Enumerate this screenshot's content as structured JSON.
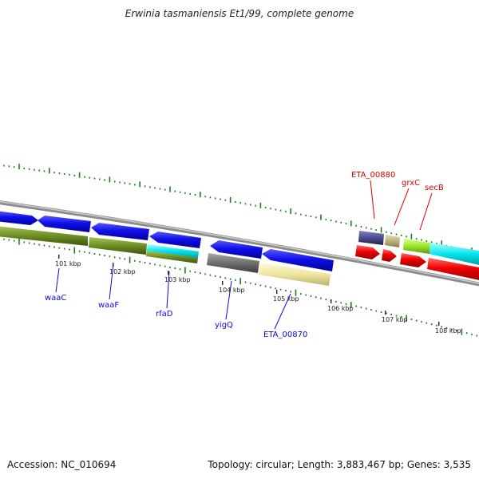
{
  "title": "Erwinia tasmaniensis Et1/99, complete genome",
  "footer": {
    "accession": "Accession: NC_010694",
    "summary": "Topology: circular; Length: 3,883,467 bp; Genes: 3,535"
  },
  "scale_labels": [
    "101 kbp",
    "102 kbp",
    "103 kbp",
    "104 kbp",
    "105 kbp",
    "106 kbp",
    "107 kbp",
    "108 kbp"
  ],
  "gene_labels": {
    "reverse_strand": [
      "waaC",
      "waaF",
      "rfaD",
      "yigQ",
      "ETA_00870"
    ],
    "forward_strand": [
      "ETA_00880",
      "grxC",
      "secB"
    ]
  },
  "colors": {
    "backbone": "#8c8c8c",
    "tick": "#1f7a1f",
    "cds_blue": "#0a0ae0",
    "cds_red": "#e00000",
    "olive": "#6b8e23",
    "cyan": "#00e5ee",
    "yellow": "#efe6a0",
    "grey": "#6e6e6e",
    "purple": "#4a4a8e",
    "khaki": "#bdb27a",
    "lime": "#9ae62a",
    "label_blue": "#0a0ad8",
    "label_red": "#d40000"
  }
}
